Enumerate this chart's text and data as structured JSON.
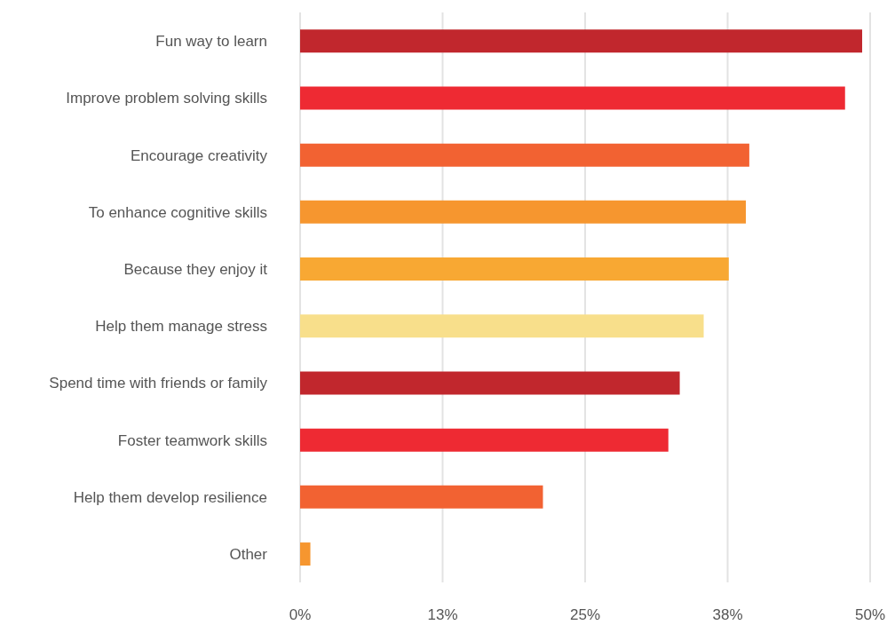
{
  "chart_data": {
    "type": "bar",
    "orientation": "horizontal",
    "categories": [
      "Fun way to learn",
      "Improve problem solving skills",
      "Encourage creativity",
      "To enhance cognitive skills",
      "Because they enjoy it",
      "Help them manage stress",
      "Spend time with friends or family",
      "Foster teamwork skills",
      "Help them develop resilience",
      "Other"
    ],
    "values": [
      49.3,
      47.8,
      39.4,
      39.1,
      37.6,
      35.4,
      33.3,
      32.3,
      21.3,
      0.9
    ],
    "colors": [
      "#c1272d",
      "#ee2a33",
      "#f26232",
      "#f6962f",
      "#f8a833",
      "#f8df8b",
      "#c1272d",
      "#ee2a33",
      "#f26232",
      "#f6962f"
    ],
    "xlim": [
      0,
      50
    ],
    "xticks": [
      {
        "value": 0,
        "label": "0%"
      },
      {
        "value": 12.5,
        "label": "13%"
      },
      {
        "value": 25,
        "label": "25%"
      },
      {
        "value": 37.5,
        "label": "38%"
      },
      {
        "value": 50,
        "label": "50%"
      }
    ],
    "grid": "x"
  }
}
